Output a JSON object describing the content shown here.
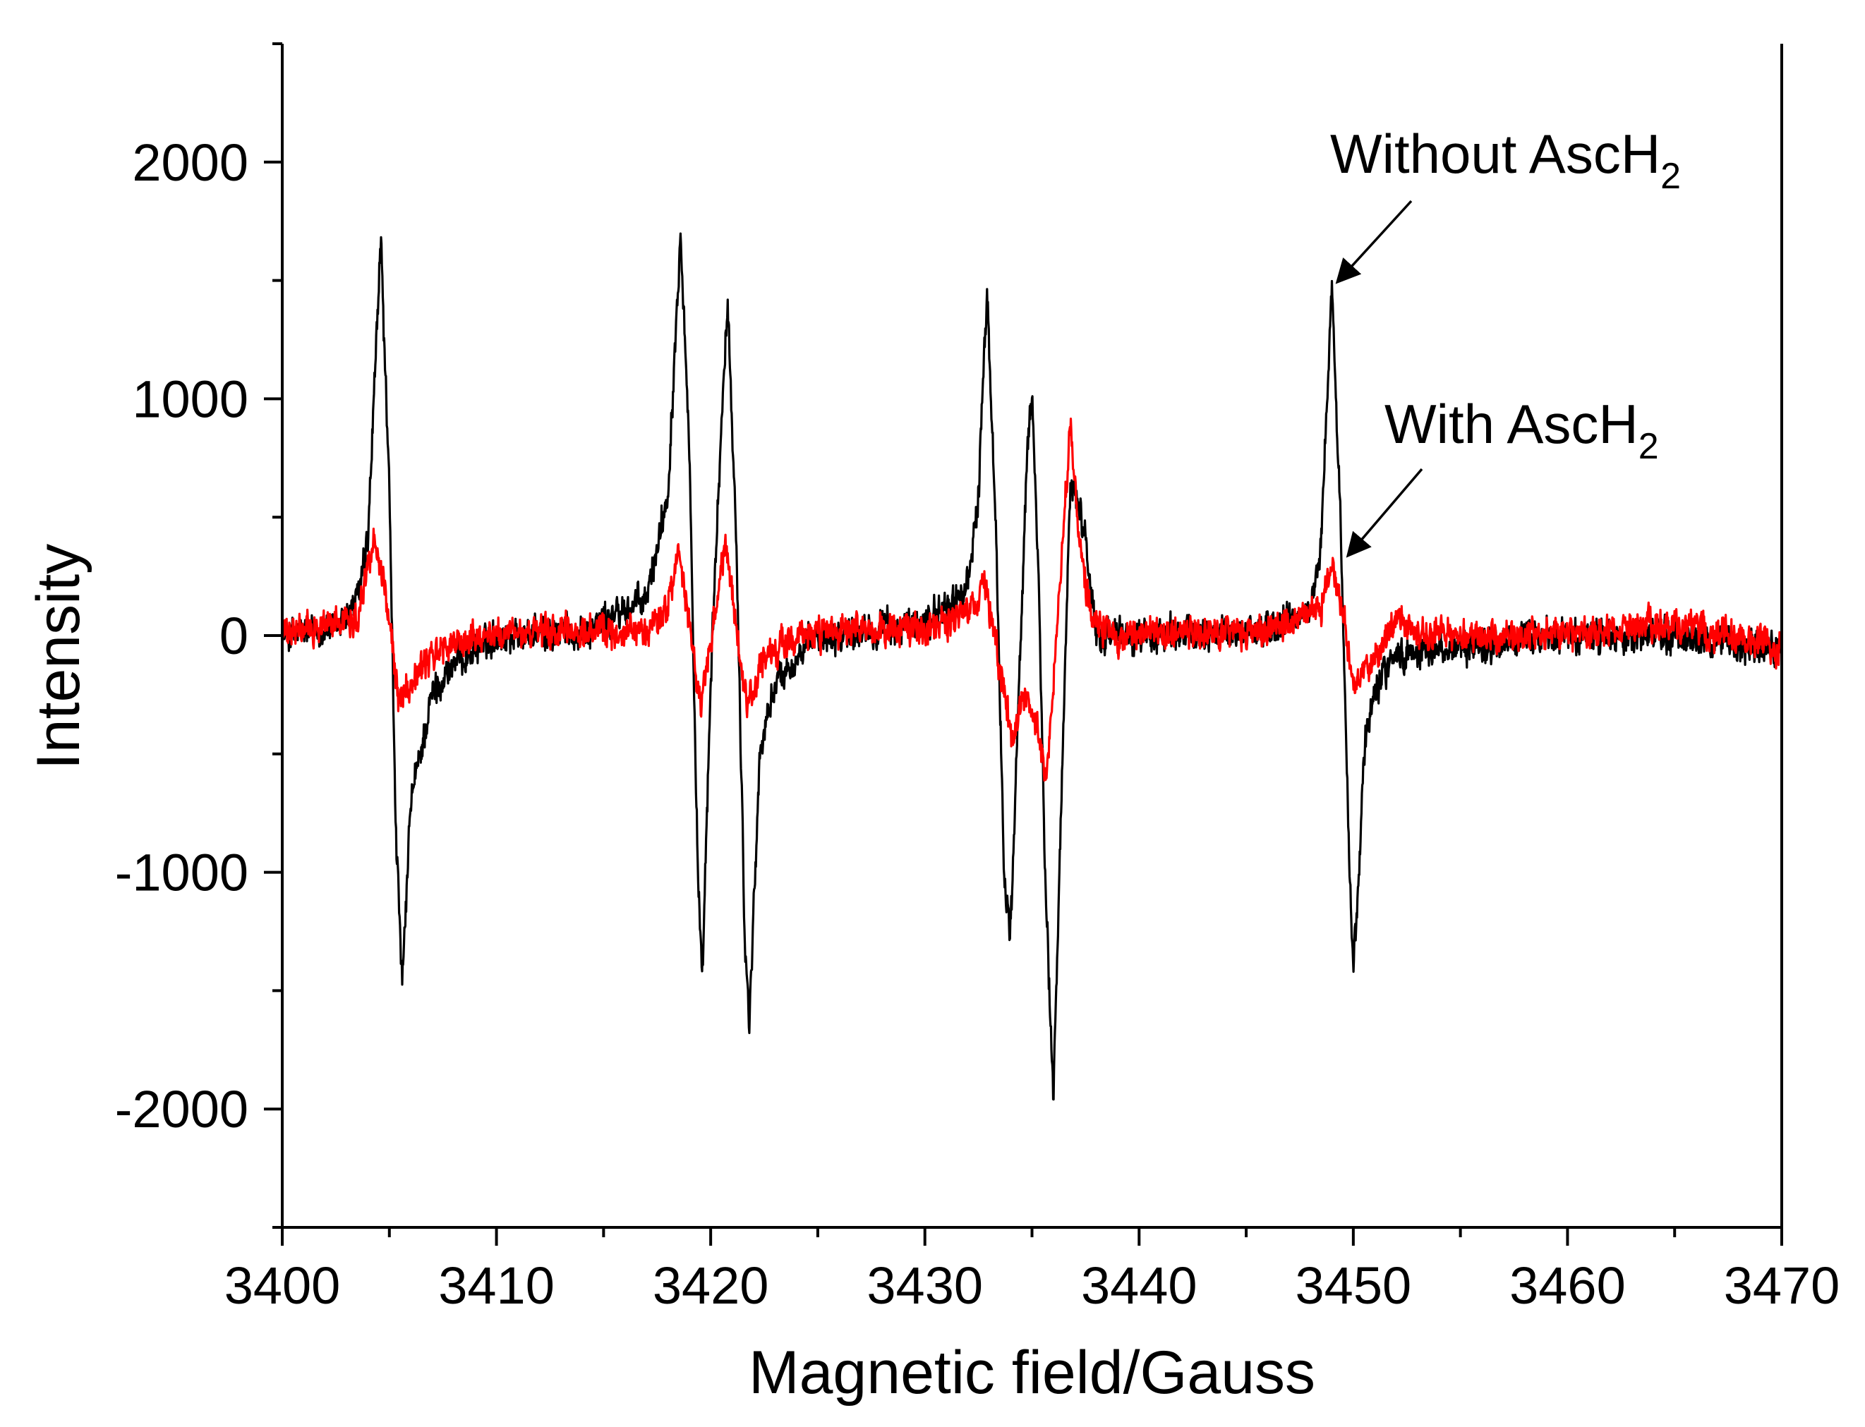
{
  "chart_data": {
    "type": "line",
    "title": "",
    "xlabel": "Magnetic field/Gauss",
    "ylabel": "Intensity",
    "xlim": [
      3400,
      3470
    ],
    "ylim": [
      -2500,
      2500
    ],
    "xticks": [
      3400,
      3410,
      3420,
      3430,
      3440,
      3450,
      3460,
      3470
    ],
    "yticks": [
      -2000,
      -1000,
      0,
      1000,
      2000
    ],
    "grid": false,
    "series": [
      {
        "name": "Without AscH2",
        "color": "#000000",
        "noise_amplitude": 90,
        "points": [
          [
            3400,
            0
          ],
          [
            3402.5,
            30
          ],
          [
            3403.5,
            150
          ],
          [
            3404.0,
            400
          ],
          [
            3404.6,
            1680
          ],
          [
            3405.0,
            600
          ],
          [
            3405.3,
            -800
          ],
          [
            3405.6,
            -1500
          ],
          [
            3406.0,
            -700
          ],
          [
            3407.0,
            -250
          ],
          [
            3408.0,
            -120
          ],
          [
            3410.0,
            0
          ],
          [
            3414.0,
            20
          ],
          [
            3417.0,
            150
          ],
          [
            3418.0,
            600
          ],
          [
            3418.6,
            1730
          ],
          [
            3419.0,
            800
          ],
          [
            3419.4,
            -1000
          ],
          [
            3419.6,
            -1500
          ],
          [
            3420.0,
            -200
          ],
          [
            3420.5,
            900
          ],
          [
            3420.8,
            1380
          ],
          [
            3421.2,
            400
          ],
          [
            3421.6,
            -1300
          ],
          [
            3421.8,
            -1620
          ],
          [
            3422.3,
            -500
          ],
          [
            3423.0,
            -200
          ],
          [
            3425.0,
            0
          ],
          [
            3430.0,
            50
          ],
          [
            3432.0,
            200
          ],
          [
            3432.5,
            600
          ],
          [
            3432.9,
            1440
          ],
          [
            3433.3,
            500
          ],
          [
            3433.7,
            -1000
          ],
          [
            3434.0,
            -1250
          ],
          [
            3434.4,
            -200
          ],
          [
            3434.8,
            800
          ],
          [
            3435.0,
            1030
          ],
          [
            3435.3,
            300
          ],
          [
            3435.6,
            -1000
          ],
          [
            3436.0,
            -1950
          ],
          [
            3436.4,
            -600
          ],
          [
            3436.8,
            700
          ],
          [
            3437.5,
            400
          ],
          [
            3438.0,
            0
          ],
          [
            3440.0,
            0
          ],
          [
            3446.0,
            20
          ],
          [
            3448.0,
            100
          ],
          [
            3448.5,
            400
          ],
          [
            3449.0,
            1480
          ],
          [
            3449.4,
            500
          ],
          [
            3449.7,
            -600
          ],
          [
            3450.0,
            -1450
          ],
          [
            3450.5,
            -500
          ],
          [
            3451.0,
            -200
          ],
          [
            3452.0,
            -80
          ],
          [
            3455.0,
            -50
          ],
          [
            3460.0,
            0
          ],
          [
            3465.0,
            0
          ],
          [
            3470.0,
            -50
          ]
        ]
      },
      {
        "name": "With AscH2",
        "color": "#ff0000",
        "noise_amplitude": 85,
        "points": [
          [
            3400,
            0
          ],
          [
            3403.5,
            80
          ],
          [
            3404.3,
            420
          ],
          [
            3404.8,
            200
          ],
          [
            3405.4,
            -250
          ],
          [
            3406.0,
            -200
          ],
          [
            3407.0,
            -80
          ],
          [
            3409.0,
            0
          ],
          [
            3417.0,
            20
          ],
          [
            3418.0,
            120
          ],
          [
            3418.5,
            350
          ],
          [
            3419.0,
            50
          ],
          [
            3419.5,
            -300
          ],
          [
            3420.0,
            -50
          ],
          [
            3420.7,
            400
          ],
          [
            3421.2,
            0
          ],
          [
            3421.7,
            -300
          ],
          [
            3422.5,
            -100
          ],
          [
            3424.0,
            0
          ],
          [
            3430.0,
            30
          ],
          [
            3432.0,
            80
          ],
          [
            3432.8,
            250
          ],
          [
            3433.3,
            -50
          ],
          [
            3433.8,
            -300
          ],
          [
            3434.1,
            -450
          ],
          [
            3434.5,
            -250
          ],
          [
            3435.0,
            -300
          ],
          [
            3435.7,
            -600
          ],
          [
            3436.3,
            200
          ],
          [
            3436.8,
            900
          ],
          [
            3437.2,
            400
          ],
          [
            3437.8,
            80
          ],
          [
            3439.0,
            0
          ],
          [
            3446.0,
            20
          ],
          [
            3448.5,
            130
          ],
          [
            3449.0,
            300
          ],
          [
            3449.5,
            100
          ],
          [
            3450.0,
            -200
          ],
          [
            3451.0,
            -100
          ],
          [
            3452.0,
            80
          ],
          [
            3453.0,
            0
          ],
          [
            3460.0,
            0
          ],
          [
            3465.0,
            50
          ],
          [
            3470.0,
            -50
          ]
        ]
      }
    ],
    "annotations": [
      {
        "text": "Without AscH",
        "subscript": "2",
        "target": [
          3449.0,
          1480
        ]
      },
      {
        "text": "With AscH",
        "subscript": "2",
        "target": [
          3449.2,
          310
        ]
      }
    ]
  }
}
